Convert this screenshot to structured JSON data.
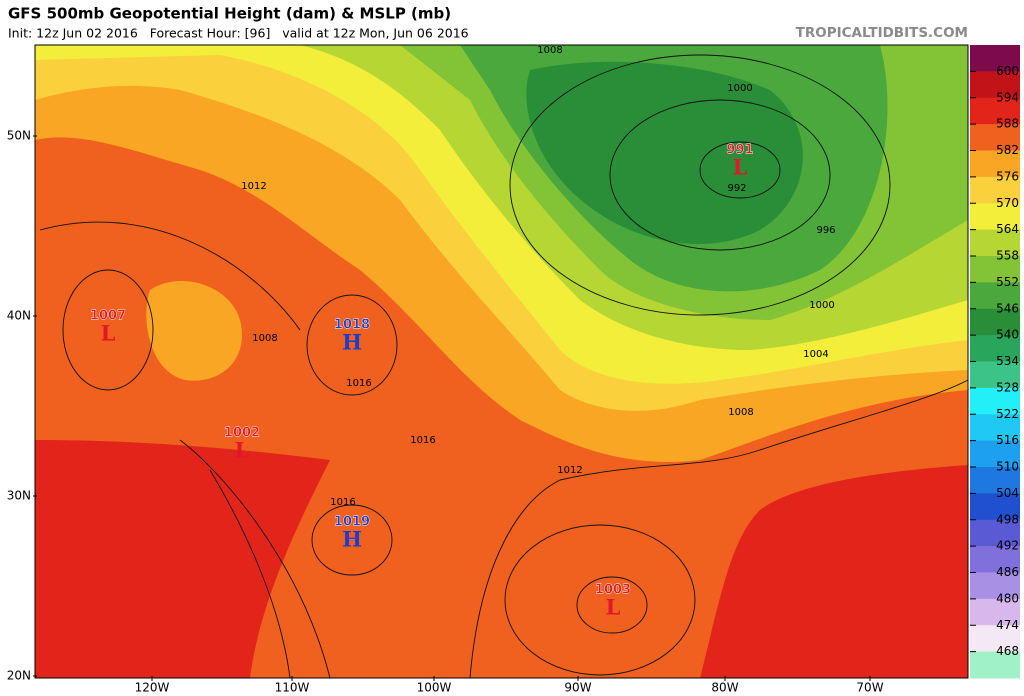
{
  "header": {
    "title": "GFS 500mb Geopotential Height (dam) & MSLP (mb)",
    "subtitle": "Init: 12z Jun 02 2016   Forecast Hour: [96]   valid at 12z Mon, Jun 06 2016",
    "site": "TROPICALTIDBITS.COM"
  },
  "colorbar": {
    "labels": [
      600,
      594,
      588,
      582,
      576,
      570,
      564,
      558,
      552,
      546,
      540,
      534,
      528,
      522,
      516,
      510,
      504,
      498,
      492,
      486,
      480,
      474,
      468
    ],
    "colors": [
      "#7d0b4c",
      "#c21418",
      "#e3241b",
      "#f0601e",
      "#f8a624",
      "#fad03c",
      "#f2ee3a",
      "#b6d634",
      "#82c436",
      "#4aa83c",
      "#2a8e38",
      "#2aa55c",
      "#3cc488",
      "#22f0f8",
      "#20c8f4",
      "#1ea0f0",
      "#1e78e0",
      "#2050d0",
      "#5a5ad4",
      "#8070dc",
      "#a890e4",
      "#d8b8ec",
      "#f4e8f4",
      "#a0f0c8"
    ]
  },
  "lat_labels": [
    "50N",
    "40N",
    "30N",
    "20N"
  ],
  "lon_labels": [
    "120W",
    "110W",
    "100W",
    "90W",
    "80W",
    "70W"
  ],
  "pressure_centers": [
    {
      "value": 991,
      "letter": "L"
    },
    {
      "value": 1007,
      "letter": "L"
    },
    {
      "value": 1018,
      "letter": "H"
    },
    {
      "value": 1002,
      "letter": "L"
    },
    {
      "value": 1019,
      "letter": "H"
    },
    {
      "value": 1003,
      "letter": "L"
    }
  ],
  "contour_labels": [
    1008,
    1000,
    992,
    996,
    1012,
    1008,
    1016,
    1016,
    1012,
    1016,
    1004,
    1000,
    1008
  ]
}
